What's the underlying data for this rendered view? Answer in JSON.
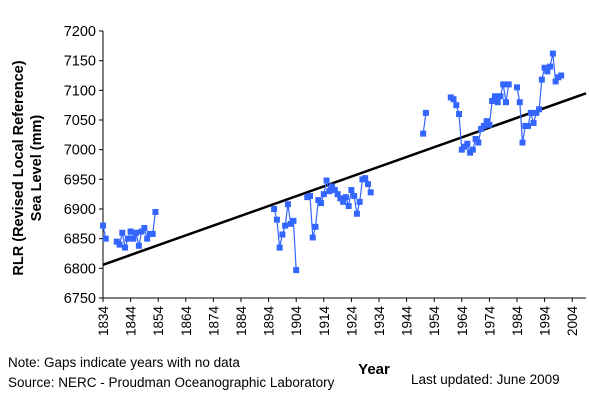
{
  "chart_data": {
    "type": "scatter",
    "title": "",
    "xlabel": "Year",
    "ylabel_line1": "RLR (Revised Local Reference)",
    "ylabel_line2": "Sea Level (mm)",
    "xlim": [
      1834,
      2009
    ],
    "ylim": [
      6750,
      7200
    ],
    "x_ticks": [
      1834,
      1844,
      1854,
      1864,
      1874,
      1884,
      1894,
      1904,
      1914,
      1924,
      1934,
      1944,
      1954,
      1964,
      1974,
      1984,
      1994,
      2004
    ],
    "y_ticks": [
      6750,
      6800,
      6850,
      6900,
      6950,
      7000,
      7050,
      7100,
      7150,
      7200
    ],
    "grid": false,
    "series": [
      {
        "color": "#3366ff",
        "marker": "square",
        "segments": [
          [
            [
              1834,
              6872
            ],
            [
              1835,
              6850
            ]
          ],
          [
            [
              1839,
              6845
            ],
            [
              1840,
              6840
            ],
            [
              1841,
              6860
            ],
            [
              1842,
              6835
            ],
            [
              1843,
              6850
            ],
            [
              1844,
              6862
            ],
            [
              1845,
              6850
            ],
            [
              1846,
              6860
            ],
            [
              1847,
              6838
            ],
            [
              1848,
              6862
            ],
            [
              1849,
              6868
            ],
            [
              1850,
              6850
            ],
            [
              1851,
              6858
            ],
            [
              1852,
              6858
            ],
            [
              1853,
              6895
            ]
          ],
          [
            [
              1896,
              6900
            ],
            [
              1897,
              6882
            ],
            [
              1898,
              6835
            ],
            [
              1899,
              6857
            ],
            [
              1900,
              6872
            ],
            [
              1901,
              6908
            ],
            [
              1902,
              6875
            ],
            [
              1903,
              6880
            ],
            [
              1904,
              6797
            ]
          ],
          [
            [
              1908,
              6920
            ],
            [
              1909,
              6922
            ],
            [
              1910,
              6852
            ],
            [
              1911,
              6870
            ],
            [
              1912,
              6915
            ],
            [
              1913,
              6910
            ],
            [
              1914,
              6925
            ],
            [
              1915,
              6948
            ],
            [
              1916,
              6930
            ],
            [
              1917,
              6938
            ],
            [
              1918,
              6932
            ],
            [
              1919,
              6925
            ],
            [
              1920,
              6918
            ],
            [
              1921,
              6912
            ],
            [
              1922,
              6920
            ],
            [
              1923,
              6905
            ],
            [
              1924,
              6932
            ],
            [
              1925,
              6922
            ],
            [
              1926,
              6892
            ],
            [
              1927,
              6912
            ],
            [
              1928,
              6950
            ],
            [
              1929,
              6952
            ],
            [
              1930,
              6942
            ],
            [
              1931,
              6928
            ]
          ],
          [
            [
              1950,
              7027
            ],
            [
              1951,
              7062
            ]
          ],
          [
            [
              1960,
              7088
            ],
            [
              1961,
              7085
            ],
            [
              1962,
              7075
            ],
            [
              1963,
              7060
            ],
            [
              1964,
              7000
            ],
            [
              1965,
              7005
            ],
            [
              1966,
              7010
            ],
            [
              1967,
              6995
            ],
            [
              1968,
              7000
            ],
            [
              1969,
              7018
            ],
            [
              1970,
              7012
            ],
            [
              1971,
              7035
            ],
            [
              1972,
              7040
            ],
            [
              1973,
              7048
            ],
            [
              1974,
              7042
            ],
            [
              1975,
              7082
            ],
            [
              1976,
              7090
            ],
            [
              1977,
              7080
            ],
            [
              1978,
              7090
            ],
            [
              1979,
              7110
            ],
            [
              1980,
              7080
            ],
            [
              1981,
              7110
            ]
          ],
          [
            [
              1984,
              7105
            ],
            [
              1985,
              7080
            ],
            [
              1986,
              7012
            ],
            [
              1987,
              7040
            ],
            [
              1988,
              7040
            ],
            [
              1989,
              7062
            ],
            [
              1990,
              7045
            ],
            [
              1991,
              7062
            ],
            [
              1992,
              7068
            ],
            [
              1993,
              7118
            ],
            [
              1994,
              7138
            ],
            [
              1995,
              7132
            ],
            [
              1996,
              7140
            ],
            [
              1997,
              7162
            ],
            [
              1998,
              7115
            ],
            [
              1999,
              7122
            ],
            [
              2000,
              7125
            ]
          ]
        ]
      }
    ],
    "trend_line": {
      "color": "#000000",
      "from": [
        1834,
        6806
      ],
      "to": [
        2009,
        7095
      ]
    }
  },
  "notes": {
    "gaps": "Note: Gaps indicate years with no data",
    "source": "Source: NERC - Proudman Oceanographic Laboratory",
    "updated": "Last updated: June 2009"
  }
}
